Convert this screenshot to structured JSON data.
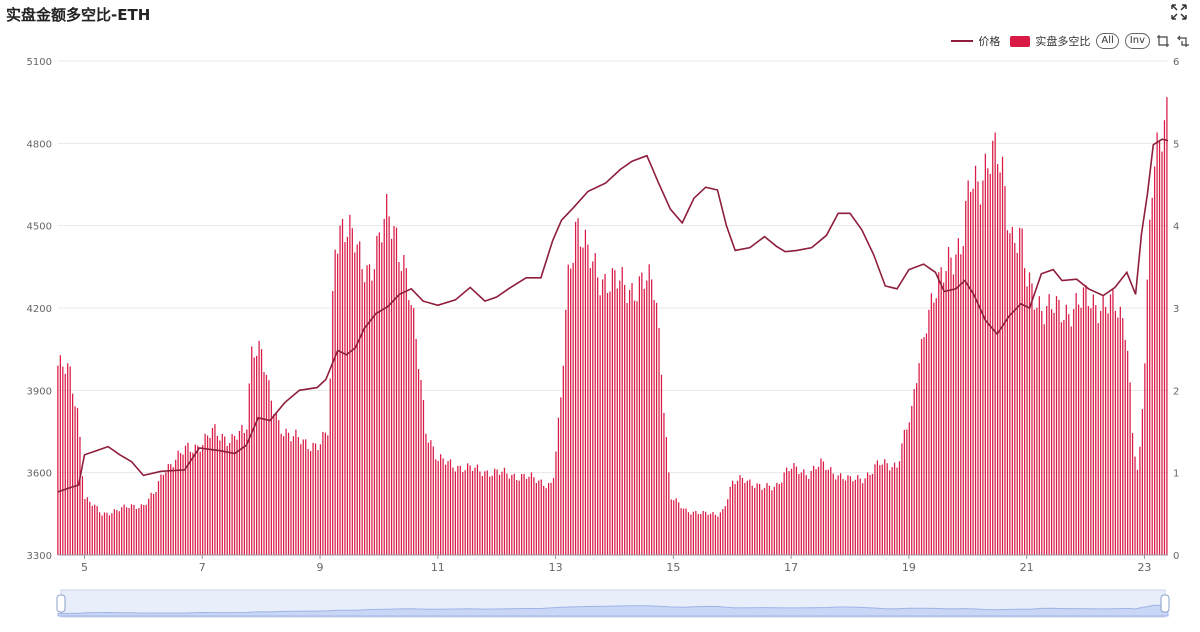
{
  "header": {
    "title": "实盘金额多空比-ETH",
    "expand_icon": "expand-arrows-icon"
  },
  "legend": {
    "price_label": "价格",
    "ratio_label": "实盘多空比",
    "all_button": "All",
    "inv_button": "Inv",
    "tools": [
      "zoom-select-icon",
      "zoom-reset-icon"
    ]
  },
  "colors": {
    "bar": "#d91a45",
    "line": "#8e1e3b",
    "grid": "#e8e8e8",
    "slider": "#c9d6f5"
  },
  "chart_data": {
    "type": "bar",
    "x_ticks": [
      "5",
      "7",
      "9",
      "11",
      "13",
      "15",
      "17",
      "19",
      "21",
      "23"
    ],
    "x_range_days": [
      4.55,
      23.4
    ],
    "y_left": {
      "ticks": [
        3300,
        3600,
        3900,
        4200,
        4500,
        4800,
        5100
      ],
      "range": [
        3300,
        5100
      ]
    },
    "y_right": {
      "ticks": [
        0,
        1,
        2,
        3,
        4,
        5,
        6
      ],
      "range": [
        0,
        6
      ]
    },
    "series": [
      {
        "name": "实盘多空比",
        "type": "bar",
        "axis": "right",
        "points": [
          [
            4.55,
            2.3
          ],
          [
            4.75,
            2.2
          ],
          [
            4.9,
            1.7
          ],
          [
            5.0,
            0.7
          ],
          [
            5.3,
            0.5
          ],
          [
            5.6,
            0.55
          ],
          [
            5.8,
            0.6
          ],
          [
            6.0,
            0.6
          ],
          [
            6.2,
            0.75
          ],
          [
            6.35,
            1.05
          ],
          [
            6.55,
            1.15
          ],
          [
            6.75,
            1.3
          ],
          [
            7.0,
            1.35
          ],
          [
            7.2,
            1.5
          ],
          [
            7.5,
            1.4
          ],
          [
            7.75,
            1.5
          ],
          [
            7.85,
            2.6
          ],
          [
            8.0,
            2.5
          ],
          [
            8.15,
            1.9
          ],
          [
            8.3,
            1.6
          ],
          [
            8.5,
            1.45
          ],
          [
            8.75,
            1.35
          ],
          [
            9.0,
            1.35
          ],
          [
            9.15,
            1.5
          ],
          [
            9.25,
            3.8
          ],
          [
            9.4,
            4.1
          ],
          [
            9.55,
            3.85
          ],
          [
            9.7,
            3.5
          ],
          [
            9.85,
            3.5
          ],
          [
            10.0,
            3.8
          ],
          [
            10.15,
            4.1
          ],
          [
            10.3,
            3.9
          ],
          [
            10.45,
            3.5
          ],
          [
            10.55,
            3.0
          ],
          [
            10.7,
            2.2
          ],
          [
            10.8,
            1.55
          ],
          [
            11.0,
            1.15
          ],
          [
            11.5,
            1.05
          ],
          [
            12.0,
            1.0
          ],
          [
            12.5,
            0.95
          ],
          [
            12.95,
            0.85
          ],
          [
            13.1,
            1.9
          ],
          [
            13.2,
            3.3
          ],
          [
            13.35,
            4.1
          ],
          [
            13.55,
            3.6
          ],
          [
            13.75,
            3.4
          ],
          [
            14.0,
            3.3
          ],
          [
            14.3,
            3.25
          ],
          [
            14.55,
            3.3
          ],
          [
            14.7,
            3.25
          ],
          [
            14.8,
            2.3
          ],
          [
            14.95,
            0.7
          ],
          [
            15.2,
            0.55
          ],
          [
            15.5,
            0.5
          ],
          [
            15.75,
            0.5
          ],
          [
            15.85,
            0.55
          ],
          [
            16.0,
            0.85
          ],
          [
            16.2,
            0.95
          ],
          [
            16.5,
            0.8
          ],
          [
            16.75,
            0.85
          ],
          [
            16.9,
            1.0
          ],
          [
            17.0,
            1.05
          ],
          [
            17.3,
            1.0
          ],
          [
            17.5,
            1.1
          ],
          [
            17.75,
            1.0
          ],
          [
            18.0,
            0.9
          ],
          [
            18.25,
            0.95
          ],
          [
            18.5,
            1.1
          ],
          [
            18.8,
            1.1
          ],
          [
            18.95,
            1.5
          ],
          [
            19.05,
            1.7
          ],
          [
            19.15,
            2.3
          ],
          [
            19.3,
            2.9
          ],
          [
            19.5,
            3.2
          ],
          [
            19.7,
            3.7
          ],
          [
            19.9,
            3.7
          ],
          [
            20.05,
            4.5
          ],
          [
            20.2,
            4.6
          ],
          [
            20.35,
            4.8
          ],
          [
            20.5,
            4.8
          ],
          [
            20.6,
            4.6
          ],
          [
            20.75,
            3.9
          ],
          [
            20.9,
            3.85
          ],
          [
            21.0,
            3.3
          ],
          [
            21.3,
            3.0
          ],
          [
            21.6,
            2.95
          ],
          [
            21.9,
            3.05
          ],
          [
            22.05,
            3.1
          ],
          [
            22.25,
            3.05
          ],
          [
            22.5,
            3.0
          ],
          [
            22.7,
            2.8
          ],
          [
            22.8,
            1.5
          ],
          [
            22.9,
            0.9
          ],
          [
            23.0,
            2.2
          ],
          [
            23.08,
            3.8
          ],
          [
            23.15,
            4.9
          ],
          [
            23.3,
            5.2
          ],
          [
            23.4,
            5.2
          ]
        ]
      },
      {
        "name": "价格",
        "type": "line",
        "axis": "left",
        "points": [
          [
            4.55,
            3530
          ],
          [
            4.75,
            3545
          ],
          [
            4.9,
            3555
          ],
          [
            5.0,
            3665
          ],
          [
            5.2,
            3680
          ],
          [
            5.4,
            3695
          ],
          [
            5.6,
            3665
          ],
          [
            5.8,
            3640
          ],
          [
            6.0,
            3590
          ],
          [
            6.3,
            3605
          ],
          [
            6.7,
            3610
          ],
          [
            6.95,
            3690
          ],
          [
            7.3,
            3680
          ],
          [
            7.55,
            3670
          ],
          [
            7.75,
            3700
          ],
          [
            7.95,
            3800
          ],
          [
            8.15,
            3790
          ],
          [
            8.4,
            3855
          ],
          [
            8.65,
            3900
          ],
          [
            8.95,
            3910
          ],
          [
            9.1,
            3940
          ],
          [
            9.3,
            4045
          ],
          [
            9.45,
            4030
          ],
          [
            9.6,
            4055
          ],
          [
            9.75,
            4125
          ],
          [
            9.95,
            4180
          ],
          [
            10.15,
            4205
          ],
          [
            10.35,
            4250
          ],
          [
            10.55,
            4270
          ],
          [
            10.75,
            4225
          ],
          [
            11.0,
            4210
          ],
          [
            11.3,
            4230
          ],
          [
            11.55,
            4275
          ],
          [
            11.8,
            4225
          ],
          [
            12.0,
            4240
          ],
          [
            12.2,
            4270
          ],
          [
            12.5,
            4310
          ],
          [
            12.75,
            4310
          ],
          [
            12.95,
            4445
          ],
          [
            13.1,
            4520
          ],
          [
            13.3,
            4565
          ],
          [
            13.55,
            4625
          ],
          [
            13.85,
            4655
          ],
          [
            14.1,
            4705
          ],
          [
            14.3,
            4735
          ],
          [
            14.55,
            4755
          ],
          [
            14.75,
            4655
          ],
          [
            14.95,
            4560
          ],
          [
            15.15,
            4510
          ],
          [
            15.35,
            4600
          ],
          [
            15.55,
            4640
          ],
          [
            15.75,
            4630
          ],
          [
            15.9,
            4500
          ],
          [
            16.05,
            4410
          ],
          [
            16.3,
            4420
          ],
          [
            16.55,
            4460
          ],
          [
            16.75,
            4425
          ],
          [
            16.9,
            4405
          ],
          [
            17.1,
            4410
          ],
          [
            17.35,
            4420
          ],
          [
            17.6,
            4465
          ],
          [
            17.8,
            4545
          ],
          [
            18.0,
            4545
          ],
          [
            18.2,
            4485
          ],
          [
            18.4,
            4395
          ],
          [
            18.6,
            4280
          ],
          [
            18.8,
            4270
          ],
          [
            19.0,
            4340
          ],
          [
            19.25,
            4360
          ],
          [
            19.45,
            4330
          ],
          [
            19.6,
            4260
          ],
          [
            19.8,
            4270
          ],
          [
            19.95,
            4300
          ],
          [
            20.1,
            4250
          ],
          [
            20.3,
            4155
          ],
          [
            20.5,
            4105
          ],
          [
            20.7,
            4170
          ],
          [
            20.9,
            4215
          ],
          [
            21.05,
            4200
          ],
          [
            21.25,
            4325
          ],
          [
            21.45,
            4340
          ],
          [
            21.6,
            4300
          ],
          [
            21.85,
            4305
          ],
          [
            22.05,
            4270
          ],
          [
            22.3,
            4245
          ],
          [
            22.5,
            4275
          ],
          [
            22.7,
            4330
          ],
          [
            22.85,
            4250
          ],
          [
            22.95,
            4470
          ],
          [
            23.05,
            4615
          ],
          [
            23.15,
            4795
          ],
          [
            23.3,
            4815
          ],
          [
            23.4,
            4810
          ]
        ]
      }
    ]
  }
}
